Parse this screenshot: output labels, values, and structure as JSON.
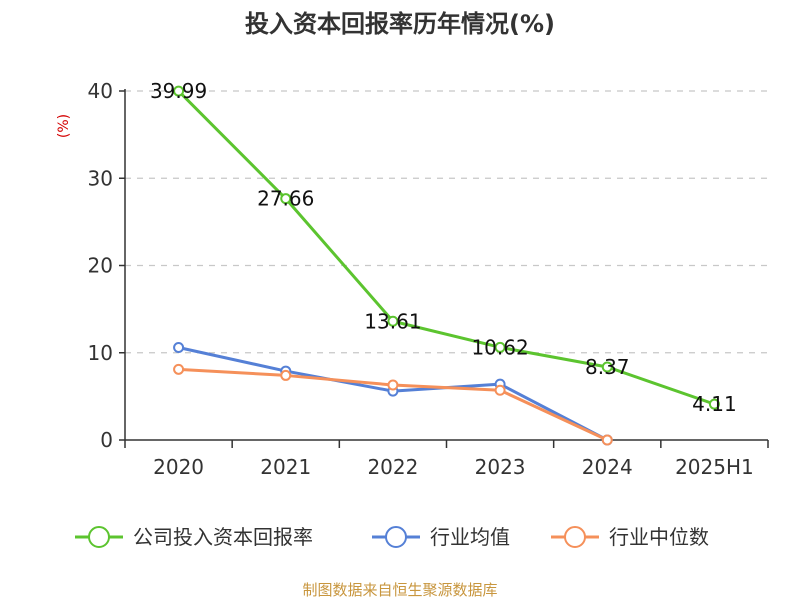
{
  "chart_data": {
    "type": "line",
    "title": "投入资本回报率历年情况(%)",
    "ylabel": "(%)",
    "categories": [
      "2020",
      "2021",
      "2022",
      "2023",
      "2024",
      "2025H1"
    ],
    "yticks": [
      0,
      10,
      20,
      30,
      40
    ],
    "ylim": [
      0,
      40
    ],
    "grid": "horizontal-dashed",
    "legend_position": "bottom",
    "series": [
      {
        "name": "公司投入资本回报率",
        "color": "#5cc42f",
        "values": [
          39.99,
          27.66,
          13.61,
          10.62,
          8.37,
          4.11
        ],
        "labels": [
          "39.99",
          "27.66",
          "13.61",
          "10.62",
          "8.37",
          "4.11"
        ]
      },
      {
        "name": "行业均值",
        "color": "#5580d6",
        "values": [
          10.6,
          7.9,
          5.6,
          6.4,
          0.0,
          null
        ]
      },
      {
        "name": "行业中位数",
        "color": "#f5905a",
        "values": [
          8.1,
          7.4,
          6.3,
          5.7,
          0.0,
          null
        ]
      }
    ]
  },
  "source": "制图数据来自恒生聚源数据库"
}
